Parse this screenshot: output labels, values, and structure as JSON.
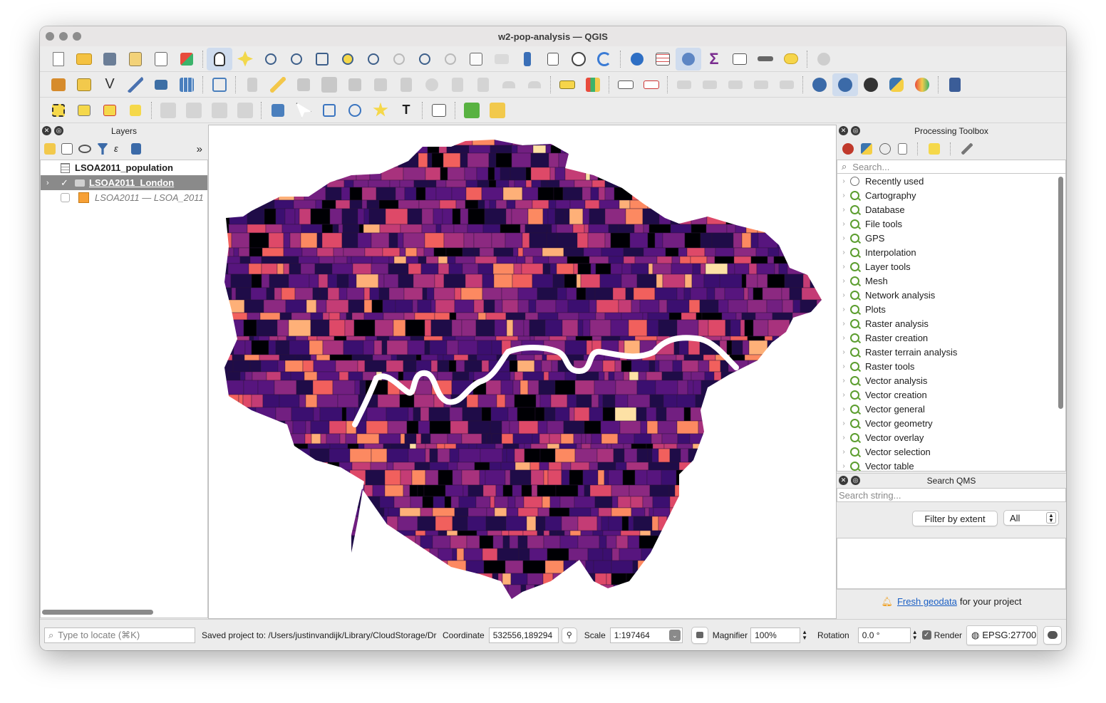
{
  "window": {
    "title": "w2-pop-analysis — QGIS"
  },
  "toolbar1": [
    "new-project-icon",
    "open-project-icon",
    "save-project-icon",
    "save-as-icon",
    "print-layout-icon",
    "style-manager-icon",
    "pan-icon",
    "pan-to-selection-icon",
    "zoom-in-icon",
    "zoom-out-icon",
    "zoom-full-icon",
    "zoom-selection-icon",
    "zoom-layer-icon",
    "zoom-native-icon",
    "zoom-last-icon",
    "zoom-next-icon",
    "new-bookmark-icon",
    "show-bookmarks-icon",
    "spatial-bookmark-icon",
    "temporal-controller-icon",
    "refresh-icon",
    "identify-icon",
    "attribute-table-icon",
    "processing-toolbox-icon",
    "statistics-sum-icon",
    "open-field-calculator-icon",
    "measure-icon",
    "annotation-icon",
    "settings-icon"
  ],
  "layers_panel": {
    "title": "Layers",
    "items": [
      {
        "label": "LSOA2011_population",
        "type": "table"
      },
      {
        "label": "LSOA2011_London",
        "type": "polygon",
        "checked": true,
        "selected": true
      },
      {
        "label": "LSOA2011 — LSOA_2011",
        "type": "polygon",
        "checked": false,
        "color": "#f7a035"
      }
    ]
  },
  "processing_toolbox": {
    "title": "Processing Toolbox",
    "search_placeholder": "Search...",
    "items": [
      "Recently used",
      "Cartography",
      "Database",
      "File tools",
      "GPS",
      "Interpolation",
      "Layer tools",
      "Mesh",
      "Network analysis",
      "Plots",
      "Raster analysis",
      "Raster creation",
      "Raster terrain analysis",
      "Raster tools",
      "Vector analysis",
      "Vector creation",
      "Vector general",
      "Vector geometry",
      "Vector overlay",
      "Vector selection",
      "Vector table"
    ]
  },
  "search_qms": {
    "title": "Search QMS",
    "search_placeholder": "Search string...",
    "filter_button": "Filter by extent",
    "filter_value": "All",
    "footer_link": "Fresh geodata",
    "footer_text": "for your project"
  },
  "statusbar": {
    "locate_placeholder": "Type to locate (⌘K)",
    "message": "Saved project to: /Users/justinvandijk/Library/CloudStorage/Dr",
    "coordinate_label": "Coordinate",
    "coordinate_value": "532556,189294",
    "scale_label": "Scale",
    "scale_value": "1:197464",
    "magnifier_label": "Magnifier",
    "magnifier_value": "100%",
    "rotation_label": "Rotation",
    "rotation_value": "0.0 °",
    "render_label": "Render",
    "crs": "EPSG:27700"
  },
  "map_palette": [
    "#000004",
    "#1f0c48",
    "#3b0f70",
    "#57157e",
    "#721f81",
    "#8c2981",
    "#a8327d",
    "#c43c75",
    "#de4968",
    "#f1605d",
    "#fc8961",
    "#feb078",
    "#fde1a5"
  ]
}
